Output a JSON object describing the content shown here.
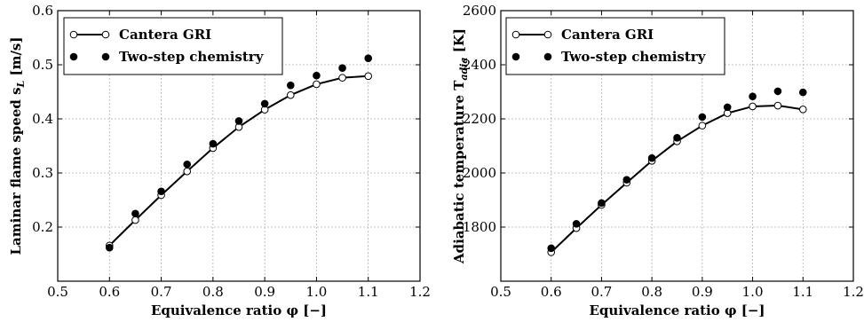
{
  "chart_data": [
    {
      "type": "line",
      "xlabel": "Equivalence ratio φ [−]",
      "ylabel": "Laminar flame speed s",
      "ylabel_sub": "L",
      "ylabel_unit": " [m/s]",
      "xlim": [
        0.5,
        1.2
      ],
      "ylim": [
        0.1,
        0.6
      ],
      "x_ticks": [
        "0.5",
        "0.6",
        "0.7",
        "0.8",
        "0.9",
        "1.0",
        "1.1",
        "1.2"
      ],
      "y_ticks": [
        "0.2",
        "0.3",
        "0.4",
        "0.5",
        "0.6"
      ],
      "grid": true,
      "legend_position": "top-left",
      "x": [
        0.6,
        0.65,
        0.7,
        0.75,
        0.8,
        0.85,
        0.9,
        0.95,
        1.0,
        1.05,
        1.1
      ],
      "series": [
        {
          "name": "Cantera GRI",
          "style": "line-open-circle",
          "values": [
            0.166,
            0.213,
            0.259,
            0.303,
            0.346,
            0.385,
            0.417,
            0.444,
            0.464,
            0.476,
            0.479
          ]
        },
        {
          "name": "Two-step chemistry",
          "style": "filled-circle",
          "values": [
            0.162,
            0.225,
            0.266,
            0.316,
            0.354,
            0.396,
            0.428,
            0.462,
            0.48,
            0.494,
            0.512
          ]
        }
      ]
    },
    {
      "type": "line",
      "xlabel": "Equivalence ratio φ [−]",
      "ylabel": "Adiabatic temperature T",
      "ylabel_sub": "adia",
      "ylabel_unit": " [K]",
      "xlim": [
        0.5,
        1.2
      ],
      "ylim": [
        1600,
        2600
      ],
      "x_ticks": [
        "0.5",
        "0.6",
        "0.7",
        "0.8",
        "0.9",
        "1.0",
        "1.1",
        "1.2"
      ],
      "y_ticks": [
        "1800",
        "2000",
        "2200",
        "2400",
        "2600"
      ],
      "grid": true,
      "legend_position": "top-left",
      "x": [
        0.6,
        0.65,
        0.7,
        0.75,
        0.8,
        0.85,
        0.9,
        0.95,
        1.0,
        1.05,
        1.1
      ],
      "series": [
        {
          "name": "Cantera GRI",
          "style": "line-open-circle",
          "values": [
            1707,
            1796,
            1882,
            1964,
            2045,
            2117,
            2175,
            2221,
            2246,
            2249,
            2235
          ]
        },
        {
          "name": "Two-step chemistry",
          "style": "filled-circle",
          "values": [
            1722,
            1812,
            1889,
            1975,
            2055,
            2130,
            2207,
            2243,
            2283,
            2302,
            2298
          ]
        }
      ]
    }
  ]
}
